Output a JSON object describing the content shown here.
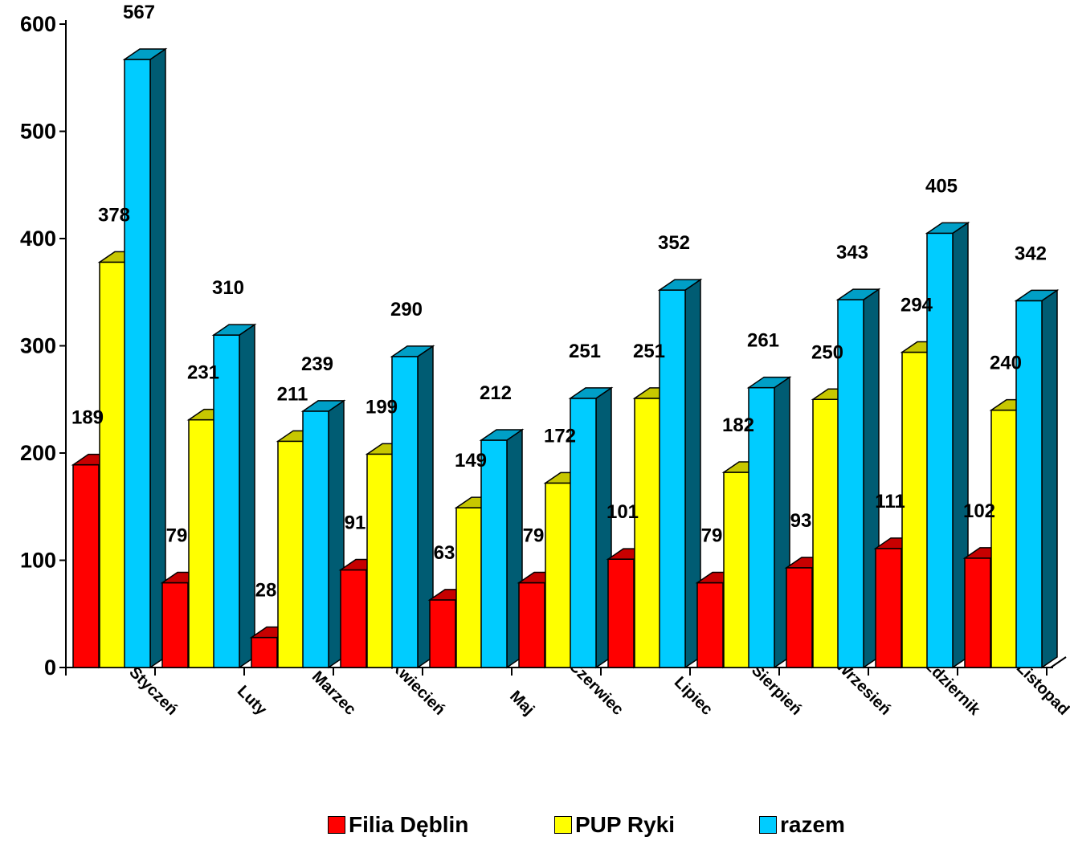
{
  "chart_data": {
    "type": "bar",
    "categories": [
      "Styczeń",
      "Luty",
      "Marzec",
      "Kwiecień",
      "Maj",
      "Czerwiec",
      "Lipiec",
      "Sierpień",
      "Wrzesień",
      "Październik",
      "Listopad"
    ],
    "series": [
      {
        "name": "Filia Dęblin",
        "color": "#ff0000",
        "values": [
          189,
          79,
          28,
          91,
          63,
          79,
          101,
          79,
          93,
          111,
          102
        ]
      },
      {
        "name": "PUP Ryki",
        "color": "#ffff00",
        "values": [
          378,
          231,
          211,
          199,
          149,
          172,
          251,
          182,
          250,
          294,
          240
        ]
      },
      {
        "name": "razem",
        "color": "#00ccff",
        "values": [
          567,
          310,
          239,
          290,
          212,
          251,
          352,
          261,
          343,
          405,
          342
        ]
      }
    ],
    "y_ticks": [
      "0",
      "100",
      "200",
      "300",
      "400",
      "500",
      "600"
    ],
    "ylim": [
      0,
      600
    ],
    "style": "3d-clustered",
    "legend_position": "bottom",
    "grid": false
  }
}
